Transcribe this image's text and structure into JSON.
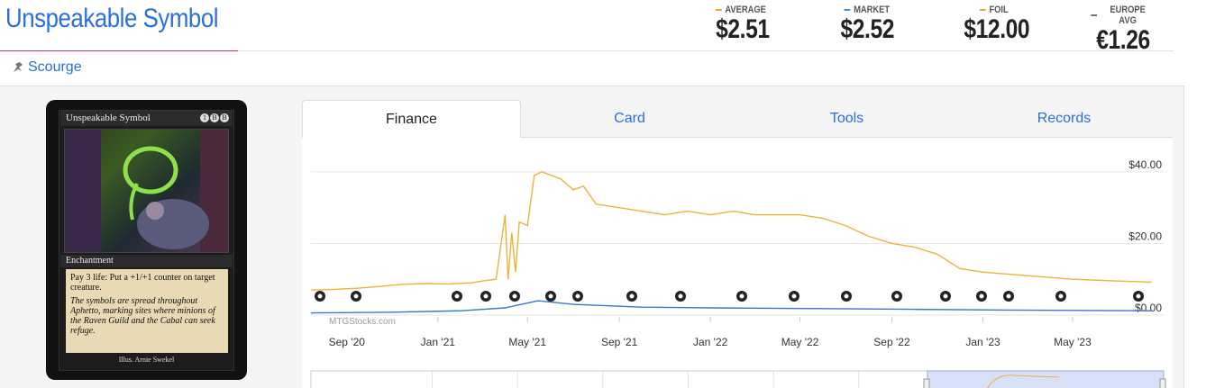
{
  "card": {
    "title": "Unspeakable Symbol",
    "set_name": "Scourge",
    "image": {
      "name": "Unspeakable Symbol",
      "mana": [
        "1",
        "B",
        "B"
      ],
      "type_line": "Enchantment",
      "rules_text": "Pay 3 life: Put a +1/+1 counter on target creature.",
      "flavor_text": "The symbols are spread throughout Aphetto, marking sites where minions of the Raven Guild and the Cabal can seek refuge.",
      "illustrator": "Illus. Arnie Swekel"
    }
  },
  "prices": [
    {
      "label": "AVERAGE",
      "value": "$2.51",
      "color": "#e8a33d"
    },
    {
      "label": "MARKET",
      "value": "$2.52",
      "color": "#4a90d9"
    },
    {
      "label": "FOIL",
      "value": "$12.00",
      "color": "#e8a33d"
    },
    {
      "label": "EUROPE AVG",
      "value": "€1.26",
      "color": "#777777"
    }
  ],
  "tabs": [
    {
      "label": "Finance",
      "active": true
    },
    {
      "label": "Card",
      "active": false
    },
    {
      "label": "Tools",
      "active": false
    },
    {
      "label": "Records",
      "active": false
    }
  ],
  "chart_data": {
    "type": "line",
    "watermark": "MTGStocks.com",
    "x_tick_labels": [
      "Sep '20",
      "Jan '21",
      "May '21",
      "Sep '21",
      "Jan '22",
      "May '22",
      "Sep '22",
      "Jan '23",
      "May '23"
    ],
    "y_tick_labels": [
      "$0.00",
      "$20.00",
      "$40.00"
    ],
    "ylim": [
      0,
      45
    ],
    "series": [
      {
        "color": "#e8b53a",
        "points": [
          [
            "2020-07-15",
            7
          ],
          [
            "2020-08-15",
            7.2
          ],
          [
            "2020-09-15",
            7.5
          ],
          [
            "2020-10-15",
            8
          ],
          [
            "2020-11-15",
            8.6
          ],
          [
            "2020-12-15",
            8.8
          ],
          [
            "2021-01-15",
            8.7
          ],
          [
            "2021-02-15",
            9
          ],
          [
            "2021-03-01",
            9.5
          ],
          [
            "2021-03-20",
            10
          ],
          [
            "2021-04-01",
            28
          ],
          [
            "2021-04-05",
            10
          ],
          [
            "2021-04-10",
            23
          ],
          [
            "2021-04-15",
            12
          ],
          [
            "2021-04-20",
            26
          ],
          [
            "2021-05-01",
            25
          ],
          [
            "2021-05-10",
            39
          ],
          [
            "2021-05-20",
            40
          ],
          [
            "2021-06-15",
            38
          ],
          [
            "2021-07-01",
            35
          ],
          [
            "2021-07-15",
            36
          ],
          [
            "2021-08-01",
            31
          ],
          [
            "2021-09-01",
            30
          ],
          [
            "2021-10-01",
            29
          ],
          [
            "2021-11-01",
            28
          ],
          [
            "2021-12-01",
            29
          ],
          [
            "2022-01-01",
            28
          ],
          [
            "2022-02-01",
            29
          ],
          [
            "2022-03-01",
            28
          ],
          [
            "2022-04-01",
            28
          ],
          [
            "2022-05-01",
            28
          ],
          [
            "2022-06-01",
            27
          ],
          [
            "2022-07-01",
            25
          ],
          [
            "2022-08-01",
            22
          ],
          [
            "2022-09-01",
            20
          ],
          [
            "2022-10-01",
            19
          ],
          [
            "2022-11-01",
            17
          ],
          [
            "2022-12-01",
            13
          ],
          [
            "2023-01-01",
            12
          ],
          [
            "2023-03-01",
            11
          ],
          [
            "2023-05-01",
            10
          ],
          [
            "2023-07-01",
            9.5
          ],
          [
            "2023-08-15",
            9.2
          ]
        ]
      },
      {
        "color": "#3a78c9",
        "points": [
          [
            "2020-07-15",
            0.6
          ],
          [
            "2020-11-01",
            0.8
          ],
          [
            "2021-02-01",
            1.2
          ],
          [
            "2021-04-01",
            2
          ],
          [
            "2021-05-15",
            4
          ],
          [
            "2021-07-01",
            3
          ],
          [
            "2021-10-01",
            2.2
          ],
          [
            "2022-01-01",
            2
          ],
          [
            "2022-06-01",
            1.8
          ],
          [
            "2022-10-01",
            1.6
          ],
          [
            "2023-02-01",
            1.4
          ],
          [
            "2023-08-15",
            1.2
          ]
        ]
      }
    ]
  }
}
